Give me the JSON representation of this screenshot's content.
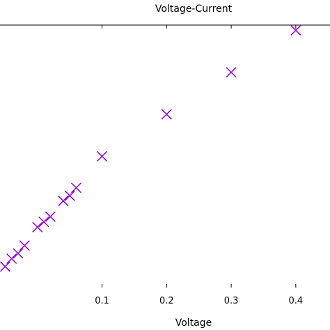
{
  "chart_data": {
    "type": "scatter",
    "title": "Voltage-Current",
    "xlabel": "Voltage",
    "ylabel": "",
    "xlim": [
      -0.058,
      0.453
    ],
    "ylim": [
      0,
      1.0
    ],
    "x_ticks": [
      0.1,
      0.2,
      0.3,
      0.4
    ],
    "x_tick_labels": [
      "0.1",
      "0.2",
      "0.3",
      "0.4"
    ],
    "y_ticks": [],
    "grid": false,
    "marker": "x",
    "series": [
      {
        "color": "#9400d3",
        "points": [
          {
            "x": -0.05,
            "y": 0.08
          },
          {
            "x": -0.04,
            "y": 0.11
          },
          {
            "x": -0.03,
            "y": 0.13
          },
          {
            "x": -0.02,
            "y": 0.16
          },
          {
            "x": 0.0,
            "y": 0.23
          },
          {
            "x": 0.01,
            "y": 0.25
          },
          {
            "x": 0.02,
            "y": 0.27
          },
          {
            "x": 0.04,
            "y": 0.33
          },
          {
            "x": 0.05,
            "y": 0.35
          },
          {
            "x": 0.06,
            "y": 0.38
          },
          {
            "x": 0.1,
            "y": 0.5
          },
          {
            "x": 0.2,
            "y": 0.66
          },
          {
            "x": 0.3,
            "y": 0.82
          },
          {
            "x": 0.4,
            "y": 0.98
          }
        ]
      }
    ]
  }
}
